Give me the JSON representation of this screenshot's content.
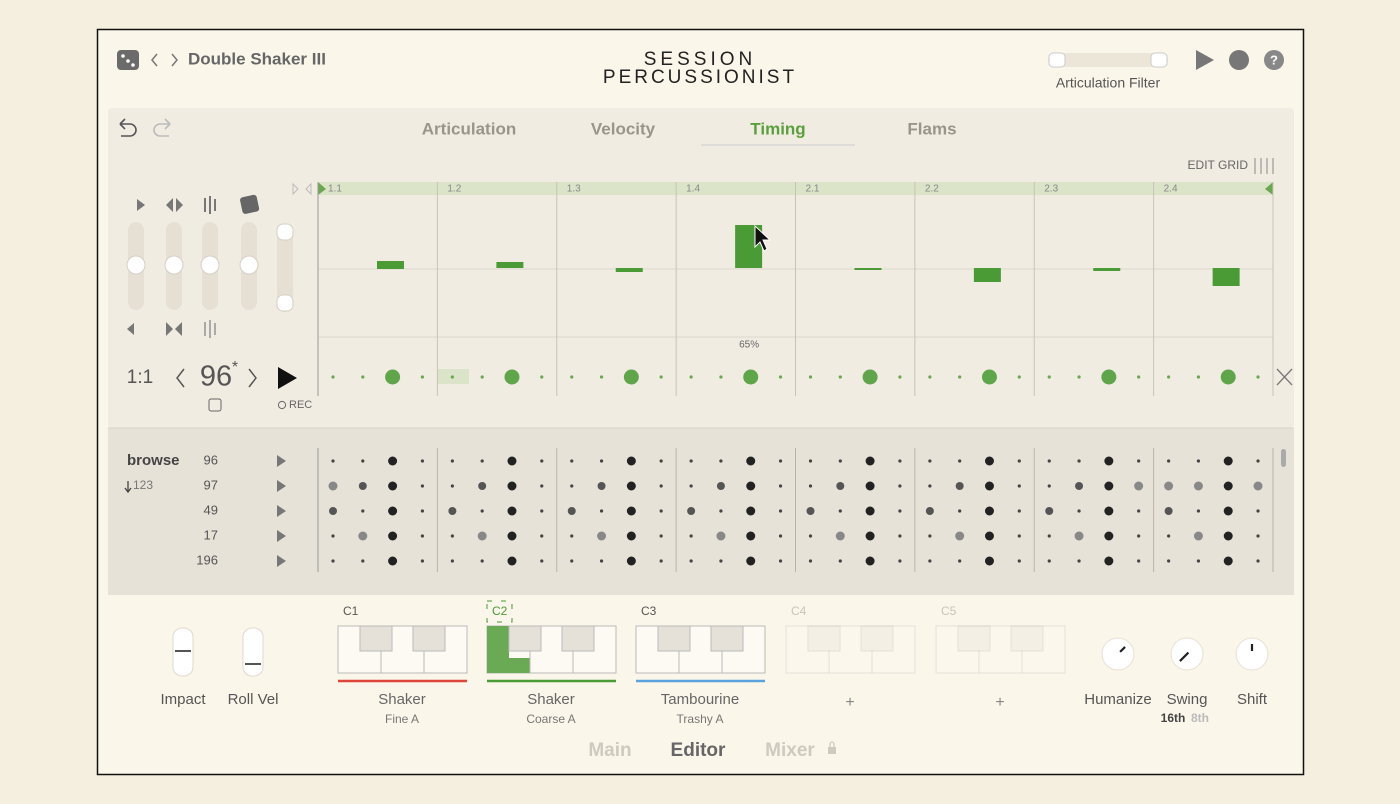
{
  "header": {
    "preset": "Double Shaker III",
    "logo_top": "SESSION",
    "logo_bottom": "PERCUSSIONIST",
    "articulation_filter": "Articulation Filter"
  },
  "tabs": [
    "Articulation",
    "Velocity",
    "Timing",
    "Flams"
  ],
  "edit_grid": "EDIT GRID",
  "ruler": [
    "1.1",
    "1.2",
    "1.3",
    "1.4",
    "2.1",
    "2.2",
    "2.3",
    "2.4"
  ],
  "step_label": "65%",
  "transport": {
    "position": "1:1",
    "tempo": "96",
    "tempo_mark": "*",
    "rec": "REC"
  },
  "browse": {
    "title": "browse",
    "sort": "123",
    "rows": [
      "96",
      "97",
      "49",
      "17",
      "196"
    ]
  },
  "slots": [
    {
      "key": "C1",
      "instrument": "Shaker",
      "articulation": "Fine A"
    },
    {
      "key": "C2",
      "instrument": "Shaker",
      "articulation": "Coarse A"
    },
    {
      "key": "C3",
      "instrument": "Tambourine",
      "articulation": "Trashy A"
    },
    {
      "key": "C4",
      "add": "+"
    },
    {
      "key": "C5",
      "add": "+"
    }
  ],
  "controls_left": [
    "Impact",
    "Roll Vel"
  ],
  "controls_right": [
    "Humanize",
    "Swing",
    "Shift"
  ],
  "swing_modes": [
    "16th",
    "8th"
  ],
  "footer_tabs": [
    "Main",
    "Editor",
    "Mixer"
  ]
}
